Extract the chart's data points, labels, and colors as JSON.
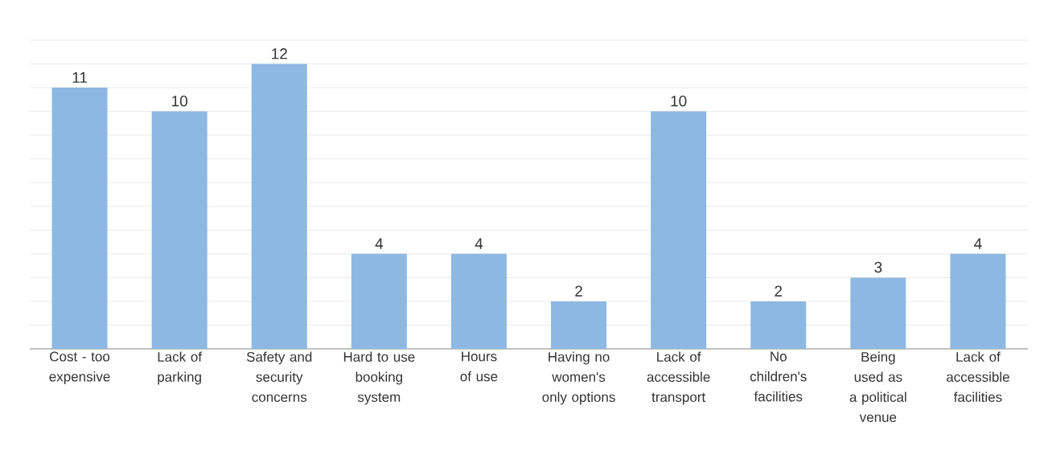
{
  "chart_data": {
    "type": "bar",
    "categories": [
      "Cost - too expensive",
      "Lack of parking",
      "Safety and security concerns",
      "Hard to use booking system",
      "Hours of use",
      "Having no women's only options",
      "Lack of accessible transport",
      "No children's facilities",
      "Being used as a political venue",
      "Lack of accessible facilities"
    ],
    "values": [
      11,
      10,
      12,
      4,
      4,
      2,
      10,
      2,
      3,
      4
    ],
    "color": "#8db8e2",
    "grid": "y",
    "tick_labels": "x",
    "data_labels": true
  }
}
